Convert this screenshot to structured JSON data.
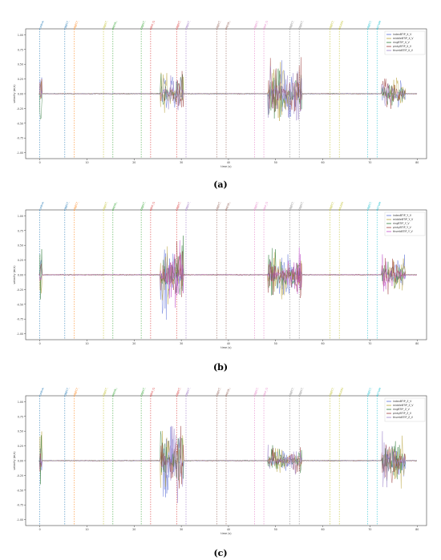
{
  "chart_data": [
    {
      "type": "line",
      "panel_label": "(a)",
      "xlabel": "time (s)",
      "ylabel": "velocity (m/s)",
      "xlim": [
        -3,
        82
      ],
      "ylim": [
        -1.1,
        1.1
      ],
      "x_ticks": [
        "0",
        "10",
        "20",
        "30",
        "40",
        "50",
        "60",
        "70",
        "80"
      ],
      "y_ticks": [
        "1.00",
        "0.75",
        "0.50",
        "0.25",
        "0.00",
        "-0.25",
        "-0.50",
        "-0.75",
        "-1.00"
      ],
      "legend_position": "top-right",
      "series": [
        {
          "name": "indexBTIP_X_V",
          "color": "#5b6fd6"
        },
        {
          "name": "middleBTIP_X_V",
          "color": "#b8a23a"
        },
        {
          "name": "ringBTIP_X_V",
          "color": "#2f7a3a"
        },
        {
          "name": "pinkyBTIP_X_V",
          "color": "#9b3b3b"
        },
        {
          "name": "thumbBTIP_X_V",
          "color": "#9a7fc8"
        }
      ],
      "bursts": [
        {
          "start": 25.5,
          "end": 30.5,
          "amplitude": 0.55
        },
        {
          "start": 48.3,
          "end": 55.5,
          "amplitude": 0.75
        },
        {
          "start": 72.5,
          "end": 77.5,
          "amplitude": 0.35
        }
      ],
      "events": [
        {
          "x": 0,
          "label": "Calibration",
          "color": "#1f77b4"
        },
        {
          "x": 5.3,
          "label": "OBJECT_rest_on",
          "color": "#1f77b4"
        },
        {
          "x": 7.3,
          "label": "OBJECT_on",
          "color": "#ff7f0e"
        },
        {
          "x": 13.5,
          "label": "OBJECT_obj_on",
          "color": "#bcbd22"
        },
        {
          "x": 15.5,
          "label": "PRESS_GRIP_CLOSE",
          "color": "#2ca02c"
        },
        {
          "x": 21.5,
          "label": "OBJECT_on",
          "color": "#2ca02c"
        },
        {
          "x": 23.5,
          "label": "GRIP_CLOSE",
          "color": "#d62728"
        },
        {
          "x": 29.0,
          "label": "OBJECT_rest_on",
          "color": "#d62728"
        },
        {
          "x": 31.0,
          "label": "OBJECT_rest",
          "color": "#9467bd"
        },
        {
          "x": 37.5,
          "label": "OBJECT_rest_on",
          "color": "#8c564b"
        },
        {
          "x": 39.5,
          "label": "PRESS_GRIP_OPEN",
          "color": "#8c564b"
        },
        {
          "x": 45.5,
          "label": "OBJECT_on",
          "color": "#e377c2"
        },
        {
          "x": 47.5,
          "label": "GRIP_OPEN",
          "color": "#e377c2"
        },
        {
          "x": 53.0,
          "label": "OBJECT_rest_on",
          "color": "#7f7f7f"
        },
        {
          "x": 55.0,
          "label": "OBJECT_off",
          "color": "#7f7f7f"
        },
        {
          "x": 61.5,
          "label": "OBJECT_off",
          "color": "#bcbd22"
        },
        {
          "x": 63.5,
          "label": "RELEASE_RETURN",
          "color": "#bcbd22"
        },
        {
          "x": 69.5,
          "label": "OBJECT_off",
          "color": "#17becf"
        },
        {
          "x": 71.5,
          "label": "RETURN",
          "color": "#17becf"
        }
      ]
    },
    {
      "type": "line",
      "panel_label": "(b)",
      "xlabel": "time (s)",
      "ylabel": "velocity (m/s)",
      "xlim": [
        -3,
        82
      ],
      "ylim": [
        -1.1,
        1.1
      ],
      "x_ticks": [
        "0",
        "10",
        "20",
        "30",
        "40",
        "50",
        "60",
        "70",
        "80"
      ],
      "y_ticks": [
        "1.00",
        "0.75",
        "0.50",
        "0.25",
        "0.00",
        "-0.25",
        "-0.50",
        "-0.75",
        "-1.00"
      ],
      "legend_position": "top-right",
      "series": [
        {
          "name": "indexBTIP_Y_V",
          "color": "#5b6fd6"
        },
        {
          "name": "middleBTIP_Y_V",
          "color": "#b8a23a"
        },
        {
          "name": "ringBTIP_Y_V",
          "color": "#2f7a3a"
        },
        {
          "name": "pinkyBTIP_Y_V",
          "color": "#9b3b3b"
        },
        {
          "name": "thumbBTIP_Y_V",
          "color": "#c04bc8"
        }
      ],
      "bursts": [
        {
          "start": 25.5,
          "end": 30.5,
          "amplitude": 0.85
        },
        {
          "start": 48.3,
          "end": 55.5,
          "amplitude": 0.6
        },
        {
          "start": 72.5,
          "end": 77.5,
          "amplitude": 0.4
        }
      ],
      "events": [
        {
          "x": 0,
          "label": "Calibration",
          "color": "#1f77b4"
        },
        {
          "x": 5.3,
          "label": "OBJECT_rest_on",
          "color": "#1f77b4"
        },
        {
          "x": 7.3,
          "label": "OBJECT_on",
          "color": "#ff7f0e"
        },
        {
          "x": 13.5,
          "label": "OBJECT_obj_on",
          "color": "#bcbd22"
        },
        {
          "x": 15.5,
          "label": "PRESS_GRIP_CLOSE",
          "color": "#2ca02c"
        },
        {
          "x": 21.5,
          "label": "OBJECT_on",
          "color": "#2ca02c"
        },
        {
          "x": 23.5,
          "label": "GRIP_CLOSE",
          "color": "#d62728"
        },
        {
          "x": 29.0,
          "label": "OBJECT_rest_on",
          "color": "#d62728"
        },
        {
          "x": 31.0,
          "label": "OBJECT_rest",
          "color": "#9467bd"
        },
        {
          "x": 37.5,
          "label": "OBJECT_rest_on",
          "color": "#8c564b"
        },
        {
          "x": 39.5,
          "label": "PRESS_GRIP_OPEN",
          "color": "#8c564b"
        },
        {
          "x": 45.5,
          "label": "OBJECT_on",
          "color": "#e377c2"
        },
        {
          "x": 47.5,
          "label": "GRIP_OPEN",
          "color": "#e377c2"
        },
        {
          "x": 53.0,
          "label": "OBJECT_rest_on",
          "color": "#7f7f7f"
        },
        {
          "x": 55.0,
          "label": "OBJECT_off",
          "color": "#7f7f7f"
        },
        {
          "x": 61.5,
          "label": "OBJECT_off",
          "color": "#bcbd22"
        },
        {
          "x": 63.5,
          "label": "RELEASE_RETURN",
          "color": "#bcbd22"
        },
        {
          "x": 69.5,
          "label": "OBJECT_off",
          "color": "#17becf"
        },
        {
          "x": 71.5,
          "label": "RETURN",
          "color": "#17becf"
        }
      ]
    },
    {
      "type": "line",
      "panel_label": "(c)",
      "xlabel": "time (s)",
      "ylabel": "velocity (m/s)",
      "xlim": [
        -3,
        82
      ],
      "ylim": [
        -1.1,
        1.1
      ],
      "x_ticks": [
        "0",
        "10",
        "20",
        "30",
        "40",
        "50",
        "60",
        "70",
        "80"
      ],
      "y_ticks": [
        "1.00",
        "0.75",
        "0.50",
        "0.25",
        "0.00",
        "-0.25",
        "-0.50",
        "-0.75",
        "-1.00"
      ],
      "legend_position": "top-right",
      "series": [
        {
          "name": "indexBTIP_Z_V",
          "color": "#5b6fd6"
        },
        {
          "name": "middleBTIP_Z_V",
          "color": "#b8a23a"
        },
        {
          "name": "ringBTIP_Z_V",
          "color": "#2f7a3a"
        },
        {
          "name": "pinkyBTIP_Z_V",
          "color": "#9b3b3b"
        },
        {
          "name": "thumbBTIP_Z_V",
          "color": "#9a7fc8"
        }
      ],
      "bursts": [
        {
          "start": 25.5,
          "end": 30.5,
          "amplitude": 0.9
        },
        {
          "start": 48.3,
          "end": 55.5,
          "amplitude": 0.3
        },
        {
          "start": 72.5,
          "end": 77.5,
          "amplitude": 0.6
        }
      ],
      "events": [
        {
          "x": 0,
          "label": "Calibration",
          "color": "#1f77b4"
        },
        {
          "x": 5.3,
          "label": "OBJECT_rest_on",
          "color": "#1f77b4"
        },
        {
          "x": 7.3,
          "label": "OBJECT_on",
          "color": "#ff7f0e"
        },
        {
          "x": 13.5,
          "label": "OBJECT_obj_on",
          "color": "#bcbd22"
        },
        {
          "x": 15.5,
          "label": "PRESS_GRIP_CLOSE",
          "color": "#2ca02c"
        },
        {
          "x": 21.5,
          "label": "OBJECT_on",
          "color": "#2ca02c"
        },
        {
          "x": 23.5,
          "label": "GRIP_CLOSE",
          "color": "#d62728"
        },
        {
          "x": 29.0,
          "label": "OBJECT_rest_on",
          "color": "#d62728"
        },
        {
          "x": 31.0,
          "label": "OBJECT_rest",
          "color": "#9467bd"
        },
        {
          "x": 37.5,
          "label": "OBJECT_rest_on",
          "color": "#8c564b"
        },
        {
          "x": 39.5,
          "label": "PRESS_GRIP_OPEN",
          "color": "#8c564b"
        },
        {
          "x": 45.5,
          "label": "OBJECT_on",
          "color": "#e377c2"
        },
        {
          "x": 47.5,
          "label": "GRIP_OPEN",
          "color": "#e377c2"
        },
        {
          "x": 53.0,
          "label": "OBJECT_rest_on",
          "color": "#7f7f7f"
        },
        {
          "x": 55.0,
          "label": "OBJECT_off",
          "color": "#7f7f7f"
        },
        {
          "x": 61.5,
          "label": "OBJECT_off",
          "color": "#bcbd22"
        },
        {
          "x": 63.5,
          "label": "RELEASE_RETURN",
          "color": "#bcbd22"
        },
        {
          "x": 69.5,
          "label": "OBJECT_off",
          "color": "#17becf"
        },
        {
          "x": 71.5,
          "label": "RETURN",
          "color": "#17becf"
        }
      ]
    }
  ]
}
